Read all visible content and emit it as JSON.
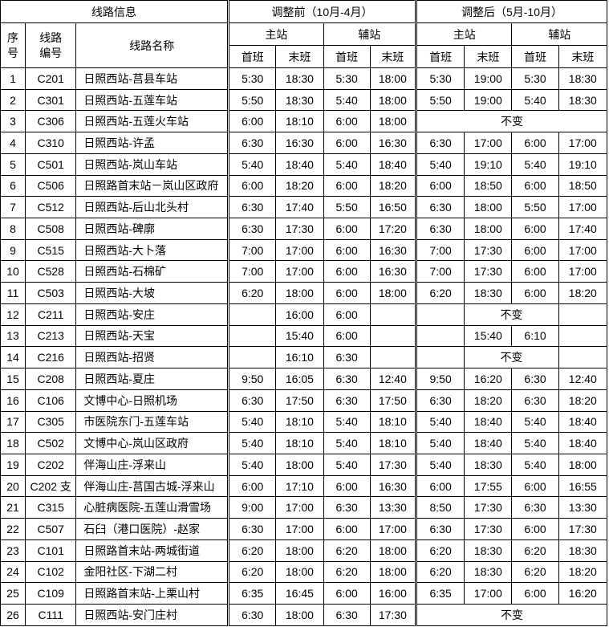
{
  "table": {
    "header": {
      "route_info": "线路信息",
      "before_period": "调整前（10月-4月）",
      "after_period": "调整后（5月-10月）",
      "no": "序\n号",
      "route_code": "线路\n编号",
      "route_name": "线路名称",
      "main_station": "主站",
      "aux_station": "辅站",
      "first_bus": "首班",
      "last_bus": "末班"
    },
    "unchanged_label": "不变",
    "rows": [
      {
        "no": "1",
        "code": "C201",
        "name": "日照西站-莒县车站",
        "before": [
          "5:30",
          "18:30",
          "5:30",
          "18:00"
        ],
        "after": [
          {
            "t": "5:30",
            "s": 1
          },
          {
            "t": "19:00",
            "s": 1
          },
          {
            "t": "5:30",
            "s": 1
          },
          {
            "t": "18:30",
            "s": 1
          }
        ]
      },
      {
        "no": "2",
        "code": "C301",
        "name": "日照西站-五莲车站",
        "before": [
          "5:50",
          "18:30",
          "5:40",
          "18:00"
        ],
        "after": [
          {
            "t": "5:50",
            "s": 1
          },
          {
            "t": "19:00",
            "s": 1
          },
          {
            "t": "5:40",
            "s": 1
          },
          {
            "t": "18:30",
            "s": 1
          }
        ]
      },
      {
        "no": "3",
        "code": "C306",
        "name": "日照西站-五莲火车站",
        "before": [
          "6:00",
          "18:10",
          "6:00",
          "18:00"
        ],
        "after": [
          {
            "t": "不变",
            "s": 4
          }
        ]
      },
      {
        "no": "4",
        "code": "C310",
        "name": "日照西站-许孟",
        "before": [
          "6:30",
          "16:30",
          "6:00",
          "16:30"
        ],
        "after": [
          {
            "t": "6:30",
            "s": 1
          },
          {
            "t": "17:00",
            "s": 1
          },
          {
            "t": "6:00",
            "s": 1
          },
          {
            "t": "17:00",
            "s": 1
          }
        ]
      },
      {
        "no": "5",
        "code": "C501",
        "name": "日照西站-岚山车站",
        "before": [
          "5:40",
          "18:40",
          "5:40",
          "18:40"
        ],
        "after": [
          {
            "t": "5:40",
            "s": 1
          },
          {
            "t": "19:10",
            "s": 1
          },
          {
            "t": "5:40",
            "s": 1
          },
          {
            "t": "19:10",
            "s": 1
          }
        ]
      },
      {
        "no": "6",
        "code": "C506",
        "name": "日照路首末站－岚山区政府",
        "before": [
          "6:00",
          "18:20",
          "6:00",
          "18:20"
        ],
        "after": [
          {
            "t": "6:00",
            "s": 1
          },
          {
            "t": "18:50",
            "s": 1
          },
          {
            "t": "6:00",
            "s": 1
          },
          {
            "t": "18:50",
            "s": 1
          }
        ]
      },
      {
        "no": "7",
        "code": "C512",
        "name": "日照西站-后山北头村",
        "before": [
          "6:30",
          "17:40",
          "5:50",
          "16:50"
        ],
        "after": [
          {
            "t": "6:30",
            "s": 1
          },
          {
            "t": "18:00",
            "s": 1
          },
          {
            "t": "5:50",
            "s": 1
          },
          {
            "t": "17:00",
            "s": 1
          }
        ]
      },
      {
        "no": "8",
        "code": "C508",
        "name": "日照西站-碑廓",
        "before": [
          "6:30",
          "17:30",
          "6:00",
          "17:20"
        ],
        "after": [
          {
            "t": "6:30",
            "s": 1
          },
          {
            "t": "18:00",
            "s": 1
          },
          {
            "t": "6:00",
            "s": 1
          },
          {
            "t": "17:40",
            "s": 1
          }
        ]
      },
      {
        "no": "9",
        "code": "C515",
        "name": "日照西站-大卜落",
        "before": [
          "7:00",
          "17:00",
          "6:00",
          "16:30"
        ],
        "after": [
          {
            "t": "7:00",
            "s": 1
          },
          {
            "t": "17:30",
            "s": 1
          },
          {
            "t": "6:00",
            "s": 1
          },
          {
            "t": "17:00",
            "s": 1
          }
        ]
      },
      {
        "no": "10",
        "code": "C528",
        "name": "日照西站-石棉矿",
        "before": [
          "7:00",
          "17:00",
          "6:00",
          "16:30"
        ],
        "after": [
          {
            "t": "7:00",
            "s": 1
          },
          {
            "t": "17:30",
            "s": 1
          },
          {
            "t": "6:00",
            "s": 1
          },
          {
            "t": "17:00",
            "s": 1
          }
        ]
      },
      {
        "no": "11",
        "code": "C503",
        "name": "日照西站-大坡",
        "before": [
          "6:20",
          "18:00",
          "6:00",
          "18:00"
        ],
        "after": [
          {
            "t": "6:20",
            "s": 1
          },
          {
            "t": "18:30",
            "s": 1
          },
          {
            "t": "6:00",
            "s": 1
          },
          {
            "t": "18:20",
            "s": 1
          }
        ]
      },
      {
        "no": "12",
        "code": "C211",
        "name": "日照西站-安庄",
        "before": [
          "",
          "16:00",
          "6:00",
          ""
        ],
        "after": [
          {
            "t": "",
            "s": 1
          },
          {
            "t": "不变",
            "s": 2
          },
          {
            "t": "",
            "s": 1
          }
        ]
      },
      {
        "no": "13",
        "code": "C213",
        "name": "日照西站-天宝",
        "before": [
          "",
          "15:40",
          "6:00",
          ""
        ],
        "after": [
          {
            "t": "",
            "s": 1
          },
          {
            "t": "15:40",
            "s": 1
          },
          {
            "t": "6:10",
            "s": 1
          },
          {
            "t": "",
            "s": 1
          }
        ]
      },
      {
        "no": "14",
        "code": "C216",
        "name": "日照西站-招贤",
        "before": [
          "",
          "16:10",
          "6:30",
          ""
        ],
        "after": [
          {
            "t": "",
            "s": 1
          },
          {
            "t": "不变",
            "s": 2
          },
          {
            "t": "",
            "s": 1
          }
        ]
      },
      {
        "no": "15",
        "code": "C208",
        "name": "日照西站-夏庄",
        "before": [
          "9:50",
          "16:05",
          "6:30",
          "12:40"
        ],
        "after": [
          {
            "t": "9:50",
            "s": 1
          },
          {
            "t": "16:20",
            "s": 1
          },
          {
            "t": "6:30",
            "s": 1
          },
          {
            "t": "12:40",
            "s": 1
          }
        ]
      },
      {
        "no": "16",
        "code": "C106",
        "name": "文博中心-日照机场",
        "before": [
          "6:30",
          "17:50",
          "6:30",
          "17:50"
        ],
        "after": [
          {
            "t": "6:30",
            "s": 1
          },
          {
            "t": "18:20",
            "s": 1
          },
          {
            "t": "6:30",
            "s": 1
          },
          {
            "t": "18:20",
            "s": 1
          }
        ]
      },
      {
        "no": "17",
        "code": "C305",
        "name": "市医院东门-五莲车站",
        "before": [
          "5:40",
          "18:10",
          "5:40",
          "18:10"
        ],
        "after": [
          {
            "t": "5:40",
            "s": 1
          },
          {
            "t": "18:40",
            "s": 1
          },
          {
            "t": "5:40",
            "s": 1
          },
          {
            "t": "18:40",
            "s": 1
          }
        ]
      },
      {
        "no": "18",
        "code": "C502",
        "name": "文博中心-岚山区政府",
        "before": [
          "5:40",
          "18:10",
          "5:40",
          "18:10"
        ],
        "after": [
          {
            "t": "5:40",
            "s": 1
          },
          {
            "t": "18:40",
            "s": 1
          },
          {
            "t": "5:40",
            "s": 1
          },
          {
            "t": "18:40",
            "s": 1
          }
        ]
      },
      {
        "no": "19",
        "code": "C202",
        "name": "伴海山庄-浮来山",
        "before": [
          "5:40",
          "18:00",
          "5:40",
          "17:30"
        ],
        "after": [
          {
            "t": "5:40",
            "s": 1
          },
          {
            "t": "18:30",
            "s": 1
          },
          {
            "t": "5:40",
            "s": 1
          },
          {
            "t": "18:00",
            "s": 1
          }
        ]
      },
      {
        "no": "20",
        "code": "C202 支",
        "name": "伴海山庄-莒国古城-浮来山",
        "before": [
          "6:00",
          "17:10",
          "6:00",
          "16:30"
        ],
        "after": [
          {
            "t": "6:00",
            "s": 1
          },
          {
            "t": "17:55",
            "s": 1
          },
          {
            "t": "6:00",
            "s": 1
          },
          {
            "t": "16:55",
            "s": 1
          }
        ]
      },
      {
        "no": "21",
        "code": "C315",
        "name": "心脏病医院-五莲山滑雪场",
        "before": [
          "9:00",
          "17:00",
          "6:30",
          "13:30"
        ],
        "after": [
          {
            "t": "8:50",
            "s": 1
          },
          {
            "t": "17:30",
            "s": 1
          },
          {
            "t": "6:30",
            "s": 1
          },
          {
            "t": "13:30",
            "s": 1
          }
        ]
      },
      {
        "no": "22",
        "code": "C507",
        "name": "石臼（港口医院）-赵家",
        "before": [
          "6:30",
          "17:00",
          "6:00",
          "17:00"
        ],
        "after": [
          {
            "t": "6:30",
            "s": 1
          },
          {
            "t": "17:30",
            "s": 1
          },
          {
            "t": "6:00",
            "s": 1
          },
          {
            "t": "17:30",
            "s": 1
          }
        ]
      },
      {
        "no": "23",
        "code": "C101",
        "name": "日照路首末站-两城街道",
        "before": [
          "6:20",
          "18:00",
          "6:20",
          "18:00"
        ],
        "after": [
          {
            "t": "6:20",
            "s": 1
          },
          {
            "t": "18:30",
            "s": 1
          },
          {
            "t": "6:20",
            "s": 1
          },
          {
            "t": "18:30",
            "s": 1
          }
        ]
      },
      {
        "no": "24",
        "code": "C102",
        "name": "金阳社区-下湖二村",
        "before": [
          "6:20",
          "18:00",
          "6:20",
          "18:00"
        ],
        "after": [
          {
            "t": "6:20",
            "s": 1
          },
          {
            "t": "18:30",
            "s": 1
          },
          {
            "t": "6:20",
            "s": 1
          },
          {
            "t": "18:20",
            "s": 1
          }
        ]
      },
      {
        "no": "25",
        "code": "C109",
        "name": "日照路首末站-上栗山村",
        "before": [
          "6:35",
          "16:45",
          "6:00",
          "16:00"
        ],
        "after": [
          {
            "t": "6:35",
            "s": 1
          },
          {
            "t": "17:00",
            "s": 1
          },
          {
            "t": "6:00",
            "s": 1
          },
          {
            "t": "16:20",
            "s": 1
          }
        ]
      },
      {
        "no": "26",
        "code": "C111",
        "name": "日照西站-安门庄村",
        "before": [
          "6:30",
          "18:00",
          "6:30",
          "17:30"
        ],
        "after": [
          {
            "t": "不变",
            "s": 4
          }
        ]
      }
    ]
  }
}
